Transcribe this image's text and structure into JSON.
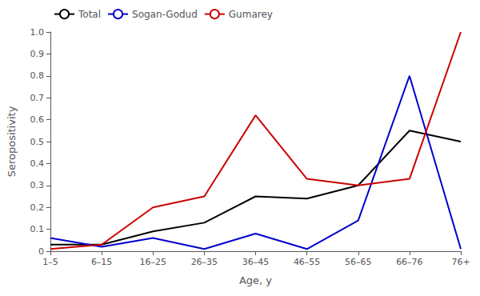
{
  "chart_data": {
    "type": "line",
    "categories": [
      "1–5",
      "6–15",
      "16–25",
      "26–35",
      "36–45",
      "46–55",
      "56–65",
      "66–76",
      "76+"
    ],
    "series": [
      {
        "name": "Total",
        "color": "#000000",
        "values": [
          0.03,
          0.03,
          0.09,
          0.13,
          0.25,
          0.24,
          0.3,
          0.55,
          0.5
        ]
      },
      {
        "name": "Sogan-Godud",
        "color": "#0000cc",
        "values": [
          0.06,
          0.02,
          0.06,
          0.01,
          0.08,
          0.01,
          0.14,
          0.8,
          0.01
        ]
      },
      {
        "name": "Gumarey",
        "color": "#cc0000",
        "values": [
          0.01,
          0.03,
          0.2,
          0.25,
          0.62,
          0.33,
          0.3,
          0.33,
          1.0
        ]
      }
    ],
    "xlabel": "Age, y",
    "ylabel": "Seropositivity",
    "ylim": [
      0,
      1
    ],
    "yticks": [
      0,
      0.1,
      0.2,
      0.3,
      0.4,
      0.5,
      0.6,
      0.7,
      0.8,
      0.9,
      {
        "value": 1,
        "label": "1.0"
      }
    ],
    "grid": false,
    "legend": "upper left"
  }
}
